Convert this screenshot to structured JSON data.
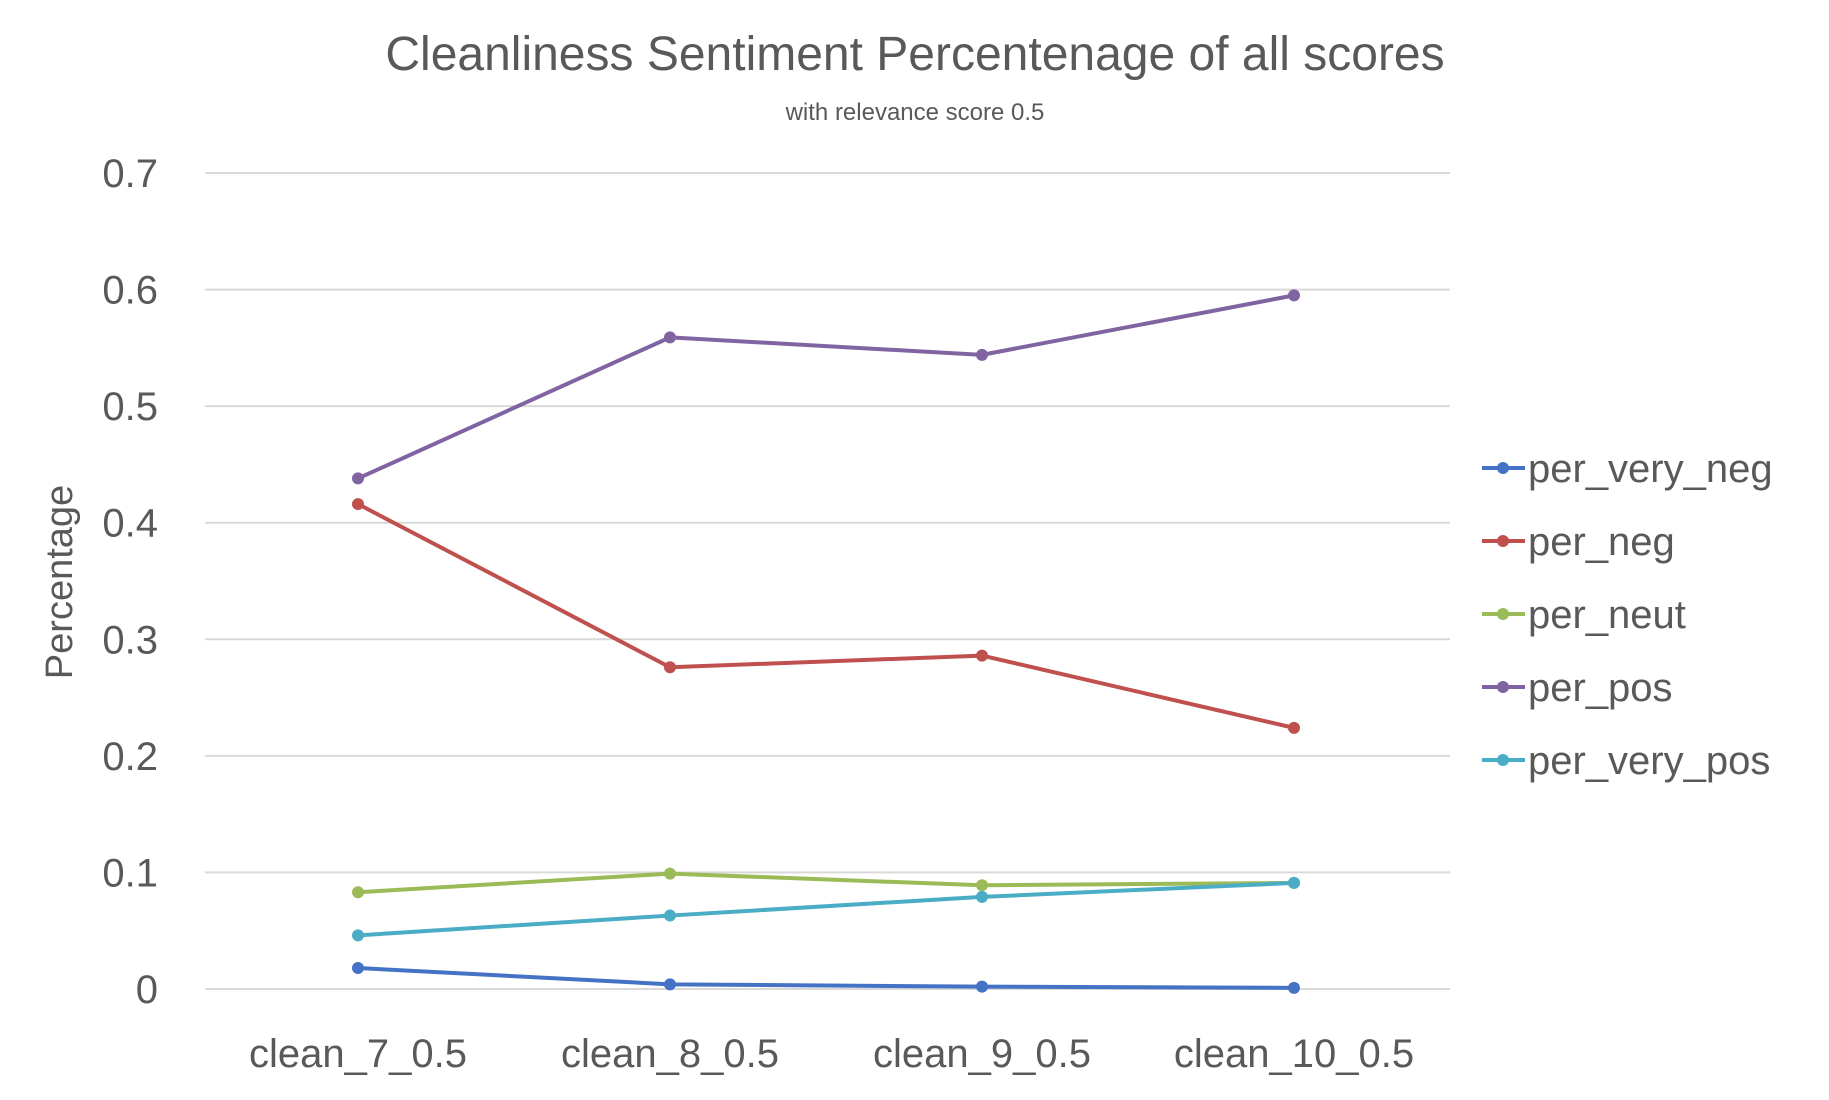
{
  "chart_data": {
    "type": "line",
    "title": "Cleanliness Sentiment Percentenage of all scores",
    "subtitle": "with relevance score 0.5",
    "xlabel": "",
    "ylabel": "Percentage",
    "ylim": [
      0,
      0.7
    ],
    "yticks": [
      "0",
      "0.1",
      "0.2",
      "0.3",
      "0.4",
      "0.5",
      "0.6",
      "0.7"
    ],
    "ytick_values": [
      0,
      0.1,
      0.2,
      0.3,
      0.4,
      0.5,
      0.6,
      0.7
    ],
    "categories": [
      "clean_7_0.5",
      "clean_8_0.5",
      "clean_9_0.5",
      "clean_10_0.5"
    ],
    "grid": true,
    "legend_position": "right",
    "series": [
      {
        "name": "per_very_neg",
        "color": "#4472C4",
        "values": [
          0.018,
          0.004,
          0.002,
          0.001
        ]
      },
      {
        "name": "per_neg",
        "color": "#C0504D",
        "values": [
          0.416,
          0.276,
          0.286,
          0.224
        ]
      },
      {
        "name": "per_neut",
        "color": "#9BBB59",
        "values": [
          0.083,
          0.099,
          0.089,
          0.091
        ]
      },
      {
        "name": "per_pos",
        "color": "#8064A2",
        "values": [
          0.438,
          0.559,
          0.544,
          0.595
        ]
      },
      {
        "name": "per_very_pos",
        "color": "#4BACC6",
        "values": [
          0.046,
          0.063,
          0.079,
          0.091
        ]
      }
    ]
  }
}
